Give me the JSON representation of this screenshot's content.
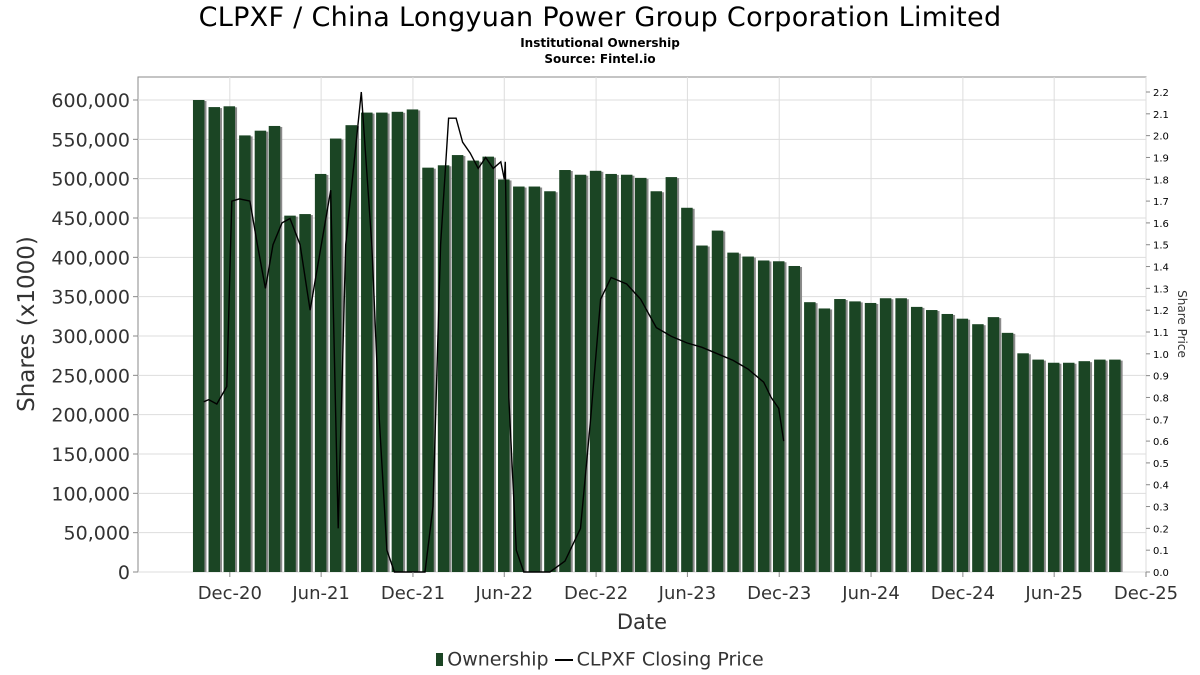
{
  "title": "CLPXF / China Longyuan Power Group Corporation Limited",
  "subtitle": "Institutional Ownership",
  "source": "Source: Fintel.io",
  "legend": {
    "ownership": "Ownership",
    "price": "CLPXF Closing Price"
  },
  "colors": {
    "bar": "#1b4524",
    "bar_shadow": "#8a8a8a",
    "line": "#000000",
    "grid": "#dddddd",
    "axis_text": "#333333"
  },
  "chart_data": {
    "type": "bar",
    "title": "CLPXF / China Longyuan Power Group Corporation Limited",
    "subtitle": "Institutional Ownership",
    "xlabel": "Date",
    "ylabel": "Shares (x1000)",
    "y2label": "Share Price",
    "ylim": [
      0,
      600000
    ],
    "y2lim": [
      0,
      2.2
    ],
    "grid": true,
    "legend_position": "bottom",
    "y_ticks": [
      "0",
      "50,000",
      "100,000",
      "150,000",
      "200,000",
      "250,000",
      "300,000",
      "350,000",
      "400,000",
      "450,000",
      "500,000",
      "550,000",
      "600,000"
    ],
    "y_tick_values": [
      0,
      50000,
      100000,
      150000,
      200000,
      250000,
      300000,
      350000,
      400000,
      450000,
      500000,
      550000,
      600000
    ],
    "y2_ticks": [
      "0.0",
      "0.1",
      "0.2",
      "0.3",
      "0.4",
      "0.5",
      "0.6",
      "0.7",
      "0.8",
      "0.9",
      "1.0",
      "1.1",
      "1.2",
      "1.3",
      "1.4",
      "1.5",
      "1.6",
      "1.7",
      "1.8",
      "1.9",
      "2.0",
      "2.1",
      "2.2"
    ],
    "y2_tick_values": [
      0.0,
      0.1,
      0.2,
      0.3,
      0.4,
      0.5,
      0.6,
      0.7,
      0.8,
      0.9,
      1.0,
      1.1,
      1.2,
      1.3,
      1.4,
      1.5,
      1.6,
      1.7,
      1.8,
      1.9,
      2.0,
      2.1,
      2.2
    ],
    "x_ticks": [
      "Dec-20",
      "Jun-21",
      "Dec-21",
      "Jun-22",
      "Dec-22",
      "Jun-23",
      "Dec-23",
      "Jun-24",
      "Dec-24",
      "Jun-25",
      "Dec-25"
    ],
    "x_tick_values": [
      "2020-12-01",
      "2021-06-01",
      "2021-12-01",
      "2022-06-01",
      "2022-12-01",
      "2023-06-01",
      "2023-12-01",
      "2024-06-01",
      "2024-12-01",
      "2025-06-01",
      "2025-12-01"
    ],
    "xlim": [
      "2020-06-01",
      "2025-12-01"
    ],
    "series": [
      {
        "name": "Ownership",
        "x": [
          "2020-09-30",
          "2020-10-31",
          "2020-11-30",
          "2020-12-31",
          "2021-01-31",
          "2021-02-28",
          "2021-03-31",
          "2021-04-30",
          "2021-05-31",
          "2021-06-30",
          "2021-07-31",
          "2021-08-31",
          "2021-09-30",
          "2021-10-31",
          "2021-11-30",
          "2021-12-31",
          "2022-01-31",
          "2022-02-28",
          "2022-03-31",
          "2022-04-30",
          "2022-05-31",
          "2022-06-30",
          "2022-07-31",
          "2022-08-31",
          "2022-09-30",
          "2022-10-31",
          "2022-11-30",
          "2022-12-31",
          "2023-01-31",
          "2023-02-28",
          "2023-03-31",
          "2023-04-30",
          "2023-05-31",
          "2023-06-30",
          "2023-07-31",
          "2023-08-31",
          "2023-09-30",
          "2023-10-31",
          "2023-11-30",
          "2023-12-31",
          "2024-01-31",
          "2024-02-29",
          "2024-03-31",
          "2024-04-30",
          "2024-05-31",
          "2024-06-30",
          "2024-07-31",
          "2024-08-31",
          "2024-09-30",
          "2024-10-31",
          "2024-11-30",
          "2024-12-31",
          "2025-01-31",
          "2025-02-28",
          "2025-03-31",
          "2025-04-30",
          "2025-05-31",
          "2025-06-30",
          "2025-07-31",
          "2025-08-31",
          "2025-09-30"
        ],
        "values": [
          600000,
          591000,
          592000,
          555000,
          561000,
          567000,
          453000,
          455000,
          506000,
          551000,
          568000,
          584000,
          584000,
          585000,
          588000,
          514000,
          517000,
          530000,
          523000,
          528000,
          499000,
          490000,
          490000,
          484000,
          511000,
          505000,
          510000,
          506000,
          505000,
          501000,
          484000,
          502000,
          463000,
          415000,
          434000,
          406000,
          401000,
          396000,
          395000,
          389000,
          343000,
          335000,
          347000,
          344000,
          342000,
          348000,
          348000,
          337000,
          333000,
          328000,
          322000,
          315000,
          324000,
          304000,
          278000,
          270000,
          266000,
          266000,
          268000,
          270000,
          270000
        ]
      },
      {
        "name": "CLPXF Closing Price",
        "x": [
          "2020-10-10",
          "2020-10-20",
          "2020-11-05",
          "2020-11-25",
          "2020-12-05",
          "2020-12-20",
          "2021-01-10",
          "2021-01-25",
          "2021-02-10",
          "2021-02-25",
          "2021-03-15",
          "2021-03-31",
          "2021-04-20",
          "2021-05-10",
          "2021-05-25",
          "2021-06-20",
          "2021-07-05",
          "2021-07-20",
          "2021-08-20",
          "2021-09-10",
          "2021-09-25",
          "2021-10-10",
          "2021-10-25",
          "2021-11-10",
          "2021-11-25",
          "2021-12-10",
          "2021-12-25",
          "2022-01-10",
          "2022-01-25",
          "2022-02-10",
          "2022-02-25",
          "2022-03-10",
          "2022-03-25",
          "2022-04-10",
          "2022-04-25",
          "2022-05-10",
          "2022-05-25",
          "2022-06-01",
          "2022-06-03",
          "2022-06-10",
          "2022-06-25",
          "2022-07-10",
          "2022-07-31",
          "2022-08-31",
          "2022-09-30",
          "2022-10-31",
          "2022-11-20",
          "2022-12-10",
          "2022-12-31",
          "2023-01-31",
          "2023-02-28",
          "2023-03-31",
          "2023-04-30",
          "2023-05-31",
          "2023-06-30",
          "2023-07-31",
          "2023-08-31",
          "2023-09-30",
          "2023-10-31",
          "2023-11-15",
          "2023-11-30",
          "2023-12-10"
        ],
        "values": [
          0.78,
          0.79,
          0.77,
          0.85,
          1.7,
          1.71,
          1.7,
          1.5,
          1.3,
          1.5,
          1.6,
          1.62,
          1.5,
          1.2,
          1.4,
          1.75,
          0.2,
          1.5,
          2.2,
          1.5,
          0.7,
          0.1,
          0.0,
          0.0,
          0.0,
          0.0,
          0.0,
          0.3,
          1.5,
          2.08,
          2.08,
          1.97,
          1.92,
          1.85,
          1.9,
          1.85,
          1.88,
          1.8,
          1.88,
          0.8,
          0.1,
          0.0,
          0.0,
          0.0,
          0.05,
          0.2,
          0.7,
          1.25,
          1.35,
          1.32,
          1.25,
          1.12,
          1.08,
          1.05,
          1.03,
          1.0,
          0.97,
          0.93,
          0.87,
          0.8,
          0.75,
          0.6
        ]
      }
    ]
  }
}
